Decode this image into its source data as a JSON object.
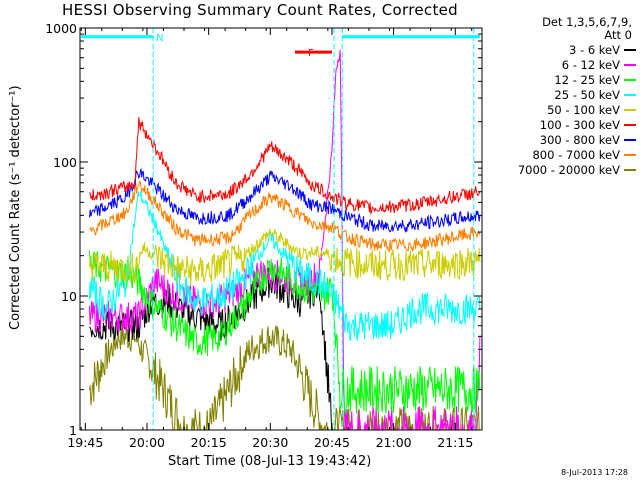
{
  "title": "HESSI Observing Summary Count Rates, Corrected",
  "legend_header": [
    "Det 1,3,5,6,7,9,",
    "Att 0"
  ],
  "footer_date": "8-Jul-2013 17:28",
  "chart_data": {
    "type": "line",
    "ylabel": "Corrected Count Rate (s⁻¹ detector⁻¹)",
    "xlabel": "Start Time (08-Jul-13 19:43:42)",
    "y_scale": "log",
    "ylim": [
      1,
      1000
    ],
    "xlim_minutes_after_1945": [
      -1.3,
      96.5
    ],
    "x_ticks": [
      "19:45",
      "20:00",
      "20:15",
      "20:30",
      "20:45",
      "21:00",
      "21:15"
    ],
    "y_ticks": [
      "1",
      "10",
      "100",
      "1000"
    ],
    "series": [
      {
        "name": "3 - 6 keV",
        "color": "#000000",
        "points": [
          [
            1,
            6
          ],
          [
            13,
            6
          ],
          [
            16,
            9
          ],
          [
            20,
            9
          ],
          [
            27,
            7
          ],
          [
            33,
            6
          ],
          [
            38,
            8
          ],
          [
            45,
            13
          ],
          [
            52,
            9
          ],
          [
            57,
            12
          ],
          [
            60,
            1
          ]
        ]
      },
      {
        "name": "6 - 12 keV",
        "color": "#ff00ff",
        "points": [
          [
            1,
            7
          ],
          [
            13,
            7
          ],
          [
            17,
            13
          ],
          [
            22,
            10
          ],
          [
            27,
            9
          ],
          [
            32,
            9
          ],
          [
            37,
            11
          ],
          [
            42,
            15
          ],
          [
            48,
            14
          ],
          [
            53,
            12
          ],
          [
            57,
            15
          ],
          [
            60,
            120
          ],
          [
            61,
            500
          ],
          [
            62,
            700
          ],
          [
            63,
            1
          ],
          [
            95,
            1
          ],
          [
            96,
            5
          ]
        ]
      },
      {
        "name": "12 - 25 keV",
        "color": "#00ff00",
        "points": [
          [
            1,
            17
          ],
          [
            12,
            14
          ],
          [
            16,
            9
          ],
          [
            22,
            6
          ],
          [
            27,
            4.5
          ],
          [
            33,
            5
          ],
          [
            38,
            8
          ],
          [
            45,
            17
          ],
          [
            52,
            12
          ],
          [
            58,
            10
          ],
          [
            60,
            12
          ],
          [
            62,
            2
          ],
          [
            96,
            2
          ]
        ]
      },
      {
        "name": "25 - 50 keV",
        "color": "#00ffff",
        "points": [
          [
            1,
            12
          ],
          [
            5,
            8
          ],
          [
            10,
            13
          ],
          [
            13,
            60
          ],
          [
            17,
            35
          ],
          [
            20,
            20
          ],
          [
            23,
            12
          ],
          [
            27,
            9
          ],
          [
            33,
            10
          ],
          [
            38,
            13
          ],
          [
            45,
            27
          ],
          [
            52,
            15
          ],
          [
            58,
            12
          ],
          [
            61,
            9
          ],
          [
            64,
            6
          ],
          [
            75,
            6
          ],
          [
            80,
            8
          ],
          [
            96,
            8
          ]
        ]
      },
      {
        "name": "50 - 100 keV",
        "color": "#cccc00",
        "points": [
          [
            1,
            17
          ],
          [
            12,
            16
          ],
          [
            14,
            23
          ],
          [
            22,
            16
          ],
          [
            28,
            15
          ],
          [
            38,
            19
          ],
          [
            45,
            30
          ],
          [
            52,
            21
          ],
          [
            58,
            21
          ],
          [
            63,
            18
          ],
          [
            70,
            17
          ],
          [
            80,
            17
          ],
          [
            96,
            18
          ]
        ]
      },
      {
        "name": "100 - 300 keV",
        "color": "#ff0000",
        "points": [
          [
            1,
            55
          ],
          [
            10,
            65
          ],
          [
            12,
            70
          ],
          [
            13,
            200
          ],
          [
            17,
            130
          ],
          [
            22,
            70
          ],
          [
            27,
            55
          ],
          [
            35,
            58
          ],
          [
            40,
            80
          ],
          [
            45,
            130
          ],
          [
            50,
            100
          ],
          [
            55,
            68
          ],
          [
            60,
            55
          ],
          [
            63,
            50
          ],
          [
            70,
            45
          ],
          [
            80,
            48
          ],
          [
            96,
            60
          ]
        ]
      },
      {
        "name": "300 - 800 keV",
        "color": "#0000ff",
        "points": [
          [
            1,
            40
          ],
          [
            10,
            55
          ],
          [
            13,
            85
          ],
          [
            17,
            65
          ],
          [
            22,
            45
          ],
          [
            27,
            38
          ],
          [
            35,
            40
          ],
          [
            40,
            55
          ],
          [
            45,
            78
          ],
          [
            50,
            66
          ],
          [
            55,
            48
          ],
          [
            60,
            45
          ],
          [
            63,
            40
          ],
          [
            70,
            33
          ],
          [
            80,
            34
          ],
          [
            96,
            40
          ]
        ]
      },
      {
        "name": "800 - 7000 keV",
        "color": "#ff8000",
        "points": [
          [
            1,
            30
          ],
          [
            10,
            42
          ],
          [
            13,
            70
          ],
          [
            17,
            50
          ],
          [
            22,
            32
          ],
          [
            27,
            26
          ],
          [
            35,
            27
          ],
          [
            40,
            40
          ],
          [
            45,
            55
          ],
          [
            50,
            45
          ],
          [
            55,
            35
          ],
          [
            60,
            33
          ],
          [
            63,
            28
          ],
          [
            70,
            24
          ],
          [
            80,
            24
          ],
          [
            96,
            30
          ]
        ]
      },
      {
        "name": "7000 - 20000 keV",
        "color": "#808000",
        "points": [
          [
            1,
            2
          ],
          [
            4,
            3
          ],
          [
            8,
            5
          ],
          [
            12,
            5
          ],
          [
            16,
            3
          ],
          [
            19,
            2
          ],
          [
            24,
            1
          ],
          [
            30,
            1
          ],
          [
            35,
            2
          ],
          [
            40,
            4
          ],
          [
            45,
            5
          ],
          [
            50,
            4
          ],
          [
            54,
            2
          ],
          [
            58,
            1
          ],
          [
            63,
            1
          ],
          [
            96,
            1
          ]
        ]
      }
    ],
    "annotations": [
      {
        "label": "N",
        "x_minutes_after_1945": [
          -1,
          16.5
        ],
        "level": 860,
        "color": "#00ffff"
      },
      {
        "label": "F",
        "x_minutes_after_1945": [
          51,
          60
        ],
        "level": 660,
        "color": "#ff0000"
      }
    ],
    "vertical_markers_minutes_after_1945": [
      16.5,
      60.5,
      62.5,
      94.5
    ]
  }
}
